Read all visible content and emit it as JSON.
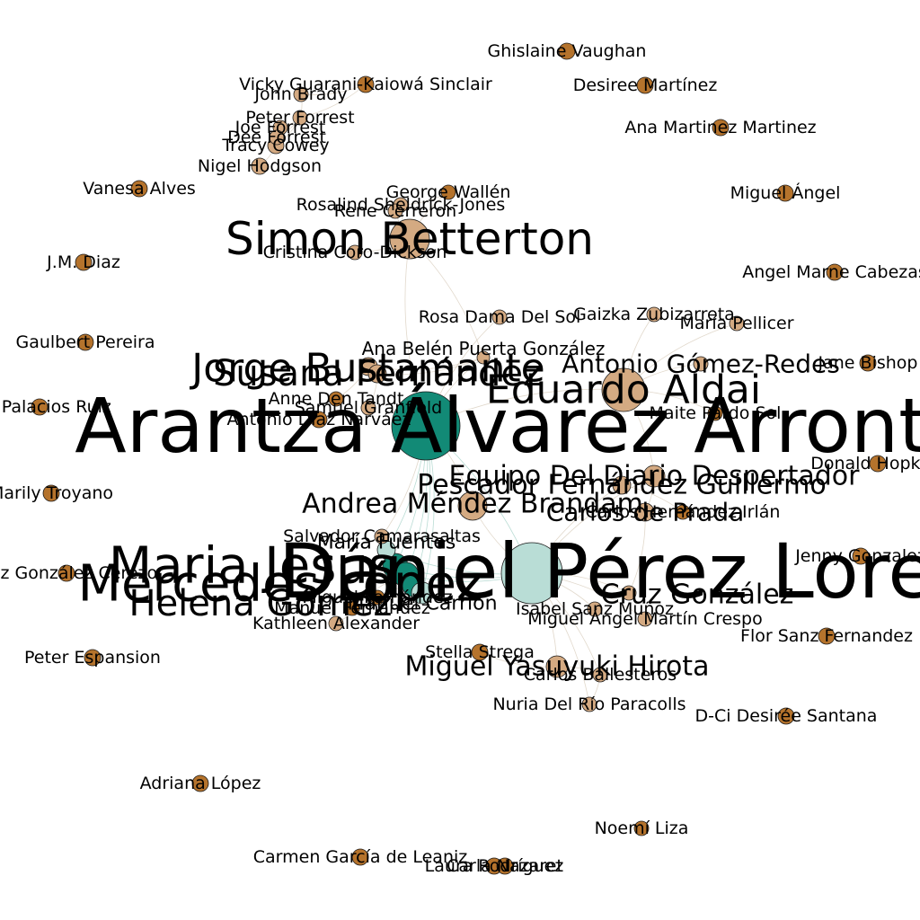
{
  "palette": {
    "background": "#ffffff",
    "edge": "#c8b8a0",
    "edge_teal": "#7fbfb0",
    "node_brown": "#b5732c",
    "node_tan": "#d4aa82",
    "node_teal": "#128a76",
    "node_teal_light": "#b9ddd6"
  },
  "nodes": [
    {
      "id": "n1",
      "label": "Arantza Álvarez Arronte",
      "color": "node_teal"
    },
    {
      "id": "n2",
      "label": "Daniel Pérez Lorente",
      "color": "node_teal_light"
    },
    {
      "id": "n3",
      "label": "Simon Betterton",
      "color": "node_tan"
    },
    {
      "id": "n4",
      "label": "Jorge Bustamante",
      "color": "node_tan"
    },
    {
      "id": "n5",
      "label": "Susana Fernández",
      "color": "node_tan"
    },
    {
      "id": "n6",
      "label": "Eduardo Aldai",
      "color": "node_tan"
    },
    {
      "id": "n7",
      "label": "Andrea Méndez Brandam",
      "color": "node_tan"
    },
    {
      "id": "n8",
      "label": "Equipo Del Diario Despertador",
      "color": "node_tan"
    },
    {
      "id": "n9",
      "label": "Pescador Fernández Guillermo",
      "color": "node_tan"
    },
    {
      "id": "n10",
      "label": "Carlos de Prada",
      "color": "node_tan"
    },
    {
      "id": "n11",
      "label": "Miguel Yasuyuki Hirota",
      "color": "node_tan"
    },
    {
      "id": "n12",
      "label": "Antonio Gómez-Redes",
      "color": "node_tan"
    },
    {
      "id": "n13",
      "label": "Ana Belén Puerta González",
      "color": "node_tan"
    },
    {
      "id": "n14",
      "label": "Cruz González",
      "color": "node_tan"
    },
    {
      "id": "n15",
      "label": "Ghislaine Vaughan",
      "color": "node_brown"
    },
    {
      "id": "n16",
      "label": "Desiree Martínez",
      "color": "node_brown"
    },
    {
      "id": "n17",
      "label": "Vicky Guarani-Kaiowá Sinclair",
      "color": "node_brown"
    },
    {
      "id": "n18",
      "label": "John Brady",
      "color": "node_tan"
    },
    {
      "id": "n19",
      "label": "Peter Forrest",
      "color": "node_tan"
    },
    {
      "id": "n20",
      "label": "Joe Forrest",
      "color": "node_tan"
    },
    {
      "id": "n21",
      "label": "Dee Forrest",
      "color": "node_tan"
    },
    {
      "id": "n22",
      "label": "Tracy Cowey",
      "color": "node_tan"
    },
    {
      "id": "n23",
      "label": "Nigel Hodgson",
      "color": "node_tan"
    },
    {
      "id": "n24",
      "label": "Ana Martinez Martinez",
      "color": "node_brown"
    },
    {
      "id": "n25",
      "label": "Vanesa Alves",
      "color": "node_brown"
    },
    {
      "id": "n26",
      "label": "George Wallén",
      "color": "node_brown"
    },
    {
      "id": "n27",
      "label": "Rosalind Sheldrick-Jones",
      "color": "node_tan"
    },
    {
      "id": "n28",
      "label": "Rene Cerreron",
      "color": "node_tan"
    },
    {
      "id": "n29",
      "label": "Miguel Ángel",
      "color": "node_brown"
    },
    {
      "id": "n30",
      "label": "Cristina Coro-Dickson",
      "color": "node_tan"
    },
    {
      "id": "n31",
      "label": "J.M. Diaz",
      "color": "node_brown"
    },
    {
      "id": "n32",
      "label": "Angel Marne Cabezas",
      "color": "node_brown"
    },
    {
      "id": "n33",
      "label": "Rosa Dama Del Sol",
      "color": "node_tan"
    },
    {
      "id": "n34",
      "label": "Gaizka Zubizarreta",
      "color": "node_tan"
    },
    {
      "id": "n35",
      "label": "María Pellicer",
      "color": "node_tan"
    },
    {
      "id": "n36",
      "label": "Gaulbert Pereira",
      "color": "node_brown"
    },
    {
      "id": "n37",
      "label": "Jane Bishop",
      "color": "node_brown"
    },
    {
      "id": "n38",
      "label": "Anne Den Tandt",
      "color": "node_brown"
    },
    {
      "id": "n39",
      "label": "Samuel Granfield",
      "color": "node_tan"
    },
    {
      "id": "n40",
      "label": "Antonio Díaz Narváez",
      "color": "node_brown"
    },
    {
      "id": "n41",
      "label": "Del Palacios Ruiz",
      "color": "node_brown"
    },
    {
      "id": "n42",
      "label": "Maite Pardo Sol",
      "color": "node_brown"
    },
    {
      "id": "n43",
      "label": "Donald Hopkins",
      "color": "node_brown"
    },
    {
      "id": "n44",
      "label": "Marily Troyano",
      "color": "node_brown"
    },
    {
      "id": "n45",
      "label": "Carlos Hernández Irlán",
      "color": "node_brown"
    },
    {
      "id": "n46",
      "label": "Salvador Camarasaltas",
      "color": "node_tan"
    },
    {
      "id": "n47",
      "label": "Luiz González Cerezo",
      "color": "node_brown"
    },
    {
      "id": "n48",
      "label": "Manuel Fernández",
      "color": "node_brown"
    },
    {
      "id": "n49",
      "label": "Kathleen Alexander",
      "color": "node_tan"
    },
    {
      "id": "n50",
      "label": "Isabel Sanz Muñoz",
      "color": "node_tan"
    },
    {
      "id": "n51",
      "label": "Miguel Ángel Martín Crespo",
      "color": "node_tan"
    },
    {
      "id": "n52",
      "label": "Jenny Gonzalez",
      "color": "node_brown"
    },
    {
      "id": "n53",
      "label": "Flor Sanz Fernandez",
      "color": "node_brown"
    },
    {
      "id": "n54",
      "label": "Peter Espansion",
      "color": "node_brown"
    },
    {
      "id": "n55",
      "label": "Stella Strega",
      "color": "node_brown"
    },
    {
      "id": "n56",
      "label": "Carlos Ballesteros",
      "color": "node_tan"
    },
    {
      "id": "n57",
      "label": "Nuria Del Río Paracolls",
      "color": "node_tan"
    },
    {
      "id": "n58",
      "label": "D-Ci Desirée Santana",
      "color": "node_brown"
    },
    {
      "id": "n59",
      "label": "Adriana López",
      "color": "node_brown"
    },
    {
      "id": "n60",
      "label": "Noemí Liza",
      "color": "node_brown"
    },
    {
      "id": "n61",
      "label": "Carmen García de Leaniz",
      "color": "node_brown"
    },
    {
      "id": "n62",
      "label": "Laura Rodríguez",
      "color": "node_brown"
    },
    {
      "id": "n63",
      "label": "Carla Nazaret",
      "color": "node_brown"
    },
    {
      "id": "n64",
      "label": "María Fuentes",
      "color": "node_teal_light"
    },
    {
      "id": "n65",
      "label": "Maria Jesús",
      "color": "node_teal"
    },
    {
      "id": "n66",
      "label": "Mercedes López",
      "color": "node_teal"
    },
    {
      "id": "n67",
      "label": "Helena Gómez",
      "color": "node_teal"
    },
    {
      "id": "n68",
      "label": "Miguel Fernández",
      "color": "node_brown"
    },
    {
      "id": "n69",
      "label": "Manuel Carrión",
      "color": "node_teal_light"
    }
  ],
  "edges": [
    [
      "n1",
      "n2"
    ],
    [
      "n1",
      "n3"
    ],
    [
      "n1",
      "n6"
    ],
    [
      "n1",
      "n7"
    ],
    [
      "n1",
      "n13"
    ],
    [
      "n1",
      "n33"
    ],
    [
      "n1",
      "n46"
    ],
    [
      "n1",
      "n64"
    ],
    [
      "n1",
      "n65"
    ],
    [
      "n1",
      "n66"
    ],
    [
      "n1",
      "n67"
    ],
    [
      "n1",
      "n69"
    ],
    [
      "n2",
      "n7"
    ],
    [
      "n2",
      "n14"
    ],
    [
      "n2",
      "n11"
    ],
    [
      "n2",
      "n56"
    ],
    [
      "n2",
      "n57"
    ],
    [
      "n2",
      "n50"
    ],
    [
      "n2",
      "n51"
    ],
    [
      "n2",
      "n64"
    ],
    [
      "n2",
      "n65"
    ],
    [
      "n2",
      "n66"
    ],
    [
      "n2",
      "n8"
    ],
    [
      "n2",
      "n9"
    ],
    [
      "n3",
      "n30"
    ],
    [
      "n3",
      "n27"
    ],
    [
      "n3",
      "n28"
    ],
    [
      "n3",
      "n26"
    ],
    [
      "n3",
      "n13"
    ],
    [
      "n6",
      "n12"
    ],
    [
      "n6",
      "n34"
    ],
    [
      "n6",
      "n35"
    ],
    [
      "n6",
      "n8"
    ],
    [
      "n6",
      "n42"
    ],
    [
      "n8",
      "n9"
    ],
    [
      "n8",
      "n10"
    ],
    [
      "n9",
      "n45"
    ],
    [
      "n10",
      "n14"
    ],
    [
      "n11",
      "n56"
    ],
    [
      "n11",
      "n55"
    ],
    [
      "n56",
      "n57"
    ],
    [
      "n17",
      "n18"
    ],
    [
      "n17",
      "n19"
    ],
    [
      "n18",
      "n19"
    ],
    [
      "n19",
      "n20"
    ],
    [
      "n19",
      "n21"
    ],
    [
      "n20",
      "n21"
    ],
    [
      "n21",
      "n22"
    ],
    [
      "n22",
      "n23"
    ],
    [
      "n19",
      "n22"
    ],
    [
      "n27",
      "n28"
    ],
    [
      "n26",
      "n27"
    ],
    [
      "n13",
      "n4"
    ],
    [
      "n13",
      "n5"
    ],
    [
      "n4",
      "n5"
    ],
    [
      "n5",
      "n39"
    ],
    [
      "n4",
      "n38"
    ],
    [
      "n46",
      "n64"
    ],
    [
      "n64",
      "n65"
    ],
    [
      "n65",
      "n66"
    ],
    [
      "n66",
      "n67"
    ],
    [
      "n67",
      "n69"
    ],
    [
      "n48",
      "n66"
    ],
    [
      "n49",
      "n69"
    ],
    [
      "n68",
      "n67"
    ]
  ]
}
